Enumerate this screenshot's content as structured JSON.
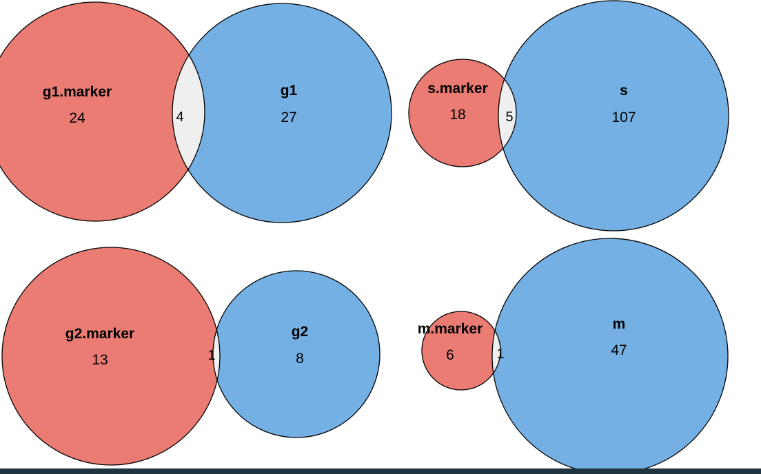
{
  "colors": {
    "left_fill": "#ea7c74",
    "right_fill": "#74b0e3",
    "overlap_fill": "#efefef",
    "outline": "#000000",
    "bottom_bar": "#1e3440"
  },
  "diagrams": [
    {
      "left": {
        "set": "g1.marker",
        "only": "24"
      },
      "right": {
        "set": "g1",
        "only": "27"
      },
      "overlap": "4"
    },
    {
      "left": {
        "set": "s.marker",
        "only": "18"
      },
      "right": {
        "set": "s",
        "only": "107"
      },
      "overlap": "5"
    },
    {
      "left": {
        "set": "g2.marker",
        "only": "13"
      },
      "right": {
        "set": "g2",
        "only": "8"
      },
      "overlap": "1"
    },
    {
      "left": {
        "set": "m.marker",
        "only": "6"
      },
      "right": {
        "set": "m",
        "only": "47"
      },
      "overlap": "1"
    }
  ]
}
